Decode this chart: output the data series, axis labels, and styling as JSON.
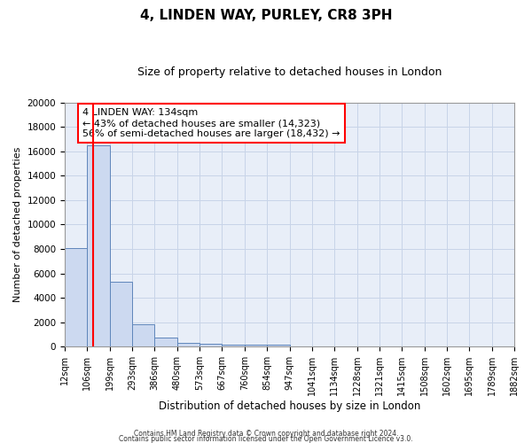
{
  "title1": "4, LINDEN WAY, PURLEY, CR8 3PH",
  "title2": "Size of property relative to detached houses in London",
  "xlabel": "Distribution of detached houses by size in London",
  "ylabel": "Number of detached properties",
  "bin_labels": [
    "12sqm",
    "106sqm",
    "199sqm",
    "293sqm",
    "386sqm",
    "480sqm",
    "573sqm",
    "667sqm",
    "760sqm",
    "854sqm",
    "947sqm",
    "1041sqm",
    "1134sqm",
    "1228sqm",
    "1321sqm",
    "1415sqm",
    "1508sqm",
    "1602sqm",
    "1695sqm",
    "1789sqm",
    "1882sqm"
  ],
  "bar_values": [
    8100,
    16500,
    5300,
    1850,
    750,
    300,
    240,
    185,
    180,
    140,
    0,
    0,
    0,
    0,
    0,
    0,
    0,
    0,
    0,
    0
  ],
  "bar_color": "#ccd9f0",
  "bar_edge_color": "#5f86bb",
  "red_line_x": 1.28,
  "annotation_text": "4 LINDEN WAY: 134sqm\n← 43% of detached houses are smaller (14,323)\n56% of semi-detached houses are larger (18,432) →",
  "annotation_box_color": "white",
  "annotation_box_edge": "red",
  "ylim": [
    0,
    20000
  ],
  "yticks": [
    0,
    2000,
    4000,
    6000,
    8000,
    10000,
    12000,
    14000,
    16000,
    18000,
    20000
  ],
  "grid_color": "#c8d4e8",
  "background_color": "#e8eef8",
  "footer1": "Contains HM Land Registry data © Crown copyright and database right 2024.",
  "footer2": "Contains public sector information licensed under the Open Government Licence v3.0."
}
